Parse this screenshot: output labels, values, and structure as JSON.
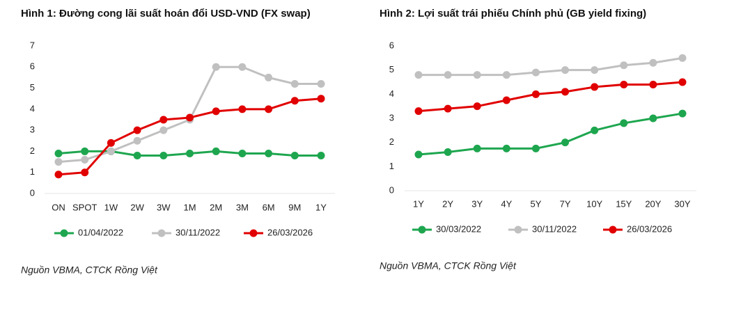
{
  "chart_data": [
    {
      "type": "line",
      "title": "Hình 1: Đường cong lãi suất hoán đổi USD-VND (FX swap)",
      "categories": [
        "ON",
        "SPOT",
        "1W",
        "2W",
        "3W",
        "1M",
        "2M",
        "3M",
        "6M",
        "9M",
        "1Y"
      ],
      "series": [
        {
          "name": "01/04/2022",
          "color": "#1ea64f",
          "values": [
            1.9,
            2.0,
            2.0,
            1.8,
            1.8,
            1.9,
            2.0,
            1.9,
            1.9,
            1.8,
            1.8
          ]
        },
        {
          "name": "30/11/2022",
          "color": "#c0c0c0",
          "values": [
            1.5,
            1.6,
            2.0,
            2.5,
            3.0,
            3.5,
            6.0,
            6.0,
            5.5,
            5.2,
            5.2
          ]
        },
        {
          "name": "26/03/2026",
          "color": "#e10000",
          "values": [
            0.9,
            1.0,
            2.4,
            3.0,
            3.5,
            3.6,
            3.9,
            4.0,
            4.0,
            4.4,
            4.5
          ]
        }
      ],
      "ylim": [
        0,
        7
      ],
      "yticks": [
        0,
        1,
        2,
        3,
        4,
        5,
        6,
        7
      ],
      "grid": false,
      "legend": "bottom",
      "source": "Nguồn VBMA, CTCK Rồng Việt"
    },
    {
      "type": "line",
      "title": "Hình 2: Lợi suất trái phiếu Chính phủ (GB yield fixing)",
      "categories": [
        "1Y",
        "2Y",
        "3Y",
        "4Y",
        "5Y",
        "7Y",
        "10Y",
        "15Y",
        "20Y",
        "30Y"
      ],
      "series": [
        {
          "name": "30/03/2022",
          "color": "#1ea64f",
          "values": [
            1.5,
            1.6,
            1.75,
            1.75,
            1.75,
            2.0,
            2.5,
            2.8,
            3.0,
            3.2
          ]
        },
        {
          "name": "30/11/2022",
          "color": "#c0c0c0",
          "values": [
            4.8,
            4.8,
            4.8,
            4.8,
            4.9,
            5.0,
            5.0,
            5.2,
            5.3,
            5.5
          ]
        },
        {
          "name": "26/03/2026",
          "color": "#e10000",
          "values": [
            3.3,
            3.4,
            3.5,
            3.75,
            4.0,
            4.1,
            4.3,
            4.4,
            4.4,
            4.5
          ]
        }
      ],
      "ylim": [
        0,
        6
      ],
      "yticks": [
        0,
        1,
        2,
        3,
        4,
        5,
        6
      ],
      "grid": false,
      "legend": "bottom",
      "source": "Nguồn VBMA, CTCK Rồng Việt"
    }
  ]
}
